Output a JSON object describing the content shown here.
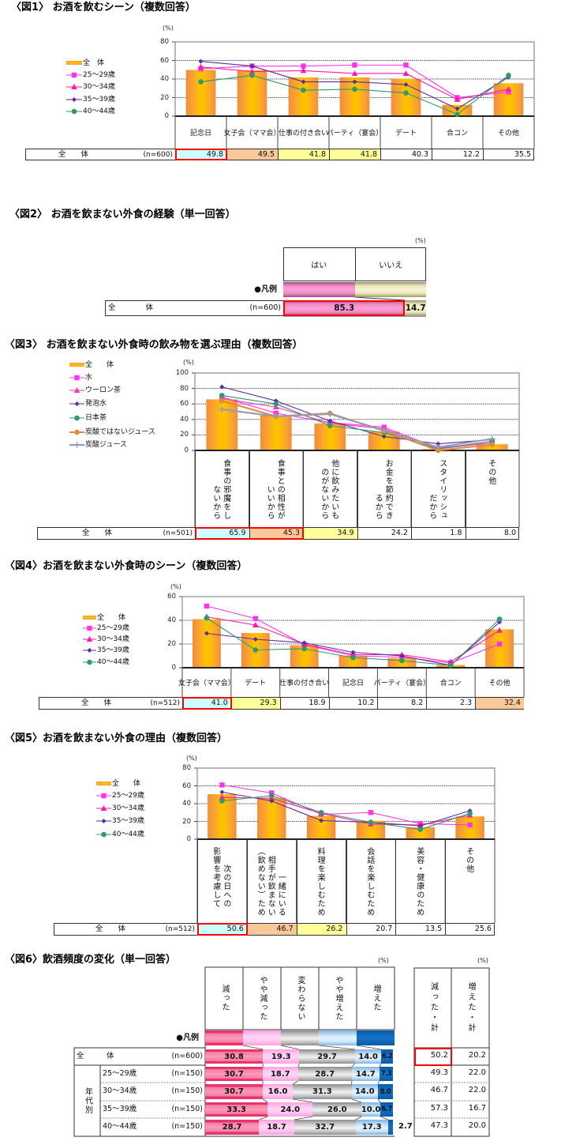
{
  "chart_data": [
    {
      "id": "fig1",
      "type": "bar_line",
      "title": "〈図1〉 お酒を飲むシーン（複数回答）",
      "unit_label": "(%)",
      "ylabel": "(%)",
      "xlabel": "",
      "ylim": [
        0,
        80
      ],
      "yticks": [
        "0",
        "20",
        "40",
        "60",
        "80"
      ],
      "grid": true,
      "legend_position": "left",
      "categories": [
        "記念日",
        "女子会（ママ会）",
        "仕事の付き合い",
        "パーティ（宴会）",
        "デート",
        "合コン",
        "その他"
      ],
      "series": [
        {
          "name": "全　体",
          "type": "bar",
          "values": [
            49.8,
            49.5,
            41.8,
            41.8,
            40.3,
            12.2,
            35.5
          ]
        },
        {
          "name": "25～29歳",
          "type": "line",
          "marker": "square",
          "color": "#ff33ee",
          "values": [
            51,
            54,
            54,
            55,
            55,
            20,
            26
          ]
        },
        {
          "name": "30～34歳",
          "type": "line",
          "marker": "triangle",
          "color": "#ff1aaa",
          "values": [
            53,
            48,
            49,
            46,
            46,
            18,
            29
          ]
        },
        {
          "name": "35～39歳",
          "type": "line",
          "marker": "diamond",
          "color": "#5b2ca0",
          "values": [
            59,
            54,
            37,
            37,
            34,
            8,
            42
          ]
        },
        {
          "name": "40～44歳",
          "type": "line",
          "marker": "circle",
          "color": "#2f9a6e",
          "values": [
            37,
            44,
            28,
            29,
            25,
            2,
            44
          ]
        }
      ],
      "table": {
        "row_label": "全　　体",
        "n_label": "(n=600)",
        "values": [
          "49.8",
          "49.5",
          "41.8",
          "41.8",
          "40.3",
          "12.2",
          "35.5"
        ],
        "fills": [
          "cyan",
          "orange",
          "yellow",
          "yellow",
          "",
          "",
          ""
        ],
        "red_box": [
          0,
          0
        ]
      }
    },
    {
      "id": "fig2",
      "type": "stacked_bar",
      "title": "〈図2〉 お酒を飲まない外食の経験（単一回答）",
      "unit_label": "(%)",
      "legend_label": "●凡例",
      "categories": [
        "はい",
        "いいえ"
      ],
      "colors": [
        "#f08cc6",
        "#ede7bd"
      ],
      "rows": [
        {
          "label": "全　　　　体",
          "n": "(n=600)",
          "values": [
            85.3,
            14.7
          ],
          "value_labels": [
            "85.3",
            "14.7"
          ]
        }
      ]
    },
    {
      "id": "fig3",
      "type": "bar_line",
      "title": "〈図3〉 お酒を飲まない外食時の飲み物を選ぶ理由（複数回答）",
      "unit_label": "(%)",
      "ylabel": "(%)",
      "xlabel": "",
      "ylim": [
        0,
        100
      ],
      "yticks": [
        "0",
        "20",
        "40",
        "60",
        "80",
        "100"
      ],
      "grid": true,
      "legend_position": "left",
      "categories": [
        "食事の邪魔をし\nないから",
        "食事との相性が\nいいから",
        "他に飲みたいも\nのがないから",
        "お金を節約でき\nるから",
        "スタイリッシュ\nだから",
        "その他"
      ],
      "series": [
        {
          "name": "全　　体",
          "type": "bar",
          "values": [
            65.9,
            45.3,
            34.9,
            24.2,
            1.8,
            8.0
          ]
        },
        {
          "name": "水",
          "type": "line",
          "marker": "square",
          "color": "#ff33ee",
          "values": [
            69,
            48,
            36,
            30,
            3,
            10
          ]
        },
        {
          "name": "ウーロン茶",
          "type": "line",
          "marker": "triangle",
          "color": "#ff33bb",
          "values": [
            67,
            56,
            35,
            28,
            2,
            10
          ]
        },
        {
          "name": "発泡水",
          "type": "line",
          "marker": "diamond",
          "color": "#5b2ca0",
          "values": [
            82,
            64,
            38,
            18,
            8.5,
            14
          ]
        },
        {
          "name": "日本茶",
          "type": "line",
          "marker": "circle",
          "color": "#2f9a72",
          "values": [
            71,
            60,
            32,
            23,
            2,
            12
          ]
        },
        {
          "name": "炭酸ではないジュース",
          "type": "line",
          "marker": "circle",
          "color": "#e08a3c",
          "width": 2,
          "values": [
            64,
            44,
            48,
            25,
            0,
            7.5
          ]
        },
        {
          "name": "炭酸ジュース",
          "type": "line",
          "marker": "plus",
          "color": "#9a9ab5",
          "width": 2.2,
          "values": [
            53,
            44,
            47,
            26,
            4,
            15
          ]
        }
      ],
      "table": {
        "row_label": "全　　体",
        "n_label": "(n=501)",
        "values": [
          "65.9",
          "45.3",
          "34.9",
          "24.2",
          "1.8",
          "8.0"
        ],
        "fills": [
          "cyan",
          "orange",
          "yellow",
          "",
          "",
          ""
        ],
        "red_box": [
          0,
          1
        ]
      }
    },
    {
      "id": "fig4",
      "type": "bar_line",
      "title": "〈図4〉お酒を飲まない外食時のシーン（複数回答）",
      "unit_label": "(%)",
      "ylabel": "(%)",
      "xlabel": "",
      "ylim": [
        0,
        60
      ],
      "yticks": [
        "0",
        "20",
        "40",
        "60"
      ],
      "grid": true,
      "legend_position": "left",
      "categories": [
        "女子会（ママ会）",
        "デート",
        "仕事の付き合い",
        "記念日",
        "パーティ（宴会）",
        "合コン",
        "その他"
      ],
      "series": [
        {
          "name": "全　　体",
          "type": "bar",
          "values": [
            41.0,
            29.3,
            18.9,
            10.2,
            8.2,
            2.3,
            32.4
          ]
        },
        {
          "name": "25～29歳",
          "type": "line",
          "marker": "square",
          "color": "#ff33ee",
          "values": [
            52,
            41.5,
            19.5,
            10,
            9,
            4,
            20
          ]
        },
        {
          "name": "30～34歳",
          "type": "line",
          "marker": "triangle",
          "color": "#ff1aaa",
          "values": [
            43,
            36,
            20,
            11,
            11,
            5,
            31.5
          ]
        },
        {
          "name": "35～39歳",
          "type": "line",
          "marker": "diamond",
          "color": "#5b2ca0",
          "values": [
            29,
            24,
            21,
            13,
            10,
            2,
            38.5
          ]
        },
        {
          "name": "40～44歳",
          "type": "line",
          "marker": "circle",
          "color": "#2f9a6e",
          "values": [
            42,
            15,
            16,
            8.5,
            6,
            2,
            41
          ]
        }
      ],
      "table": {
        "row_label": "全　　体",
        "n_label": "(n=512)",
        "values": [
          "41.0",
          "29.3",
          "18.9",
          "10.2",
          "8.2",
          "2.3",
          "32.4"
        ],
        "fills": [
          "cyan",
          "yellow",
          "",
          "",
          "",
          "",
          "orange"
        ],
        "red_box": [
          0,
          0
        ]
      }
    },
    {
      "id": "fig5",
      "type": "bar_line",
      "title": "〈図5〉お酒を飲まない外食の理由（複数回答）",
      "unit_label": "(%)",
      "ylabel": "(%)",
      "xlabel": "",
      "ylim": [
        0,
        80
      ],
      "yticks": [
        "0",
        "20",
        "40",
        "60",
        "80"
      ],
      "grid": true,
      "legend_position": "left",
      "categories": [
        "次の日への\n影響を考慮して",
        "一緒にいる\n相手が飲まない\n（飲めない）ため",
        "料理を楽しむため",
        "会話を楽しむため",
        "美容・健康のため",
        "その他"
      ],
      "series": [
        {
          "name": "全　　体",
          "type": "bar",
          "values": [
            50.6,
            46.7,
            26.2,
            20.7,
            13.5,
            25.6
          ]
        },
        {
          "name": "25～29歳",
          "type": "line",
          "marker": "square",
          "color": "#ff33ee",
          "values": [
            61,
            52,
            28,
            30,
            17.5,
            16
          ]
        },
        {
          "name": "30～34歳",
          "type": "line",
          "marker": "triangle",
          "color": "#ff1aaa",
          "values": [
            47,
            46,
            29,
            17,
            16,
            27
          ]
        },
        {
          "name": "35～39歳",
          "type": "line",
          "marker": "diamond",
          "color": "#5b2ca0",
          "values": [
            53,
            43,
            21,
            19,
            15,
            32
          ]
        },
        {
          "name": "40～44歳",
          "type": "line",
          "marker": "circle",
          "color": "#2f9a6e",
          "values": [
            43,
            49,
            30,
            19,
            11,
            29
          ]
        }
      ],
      "table": {
        "row_label": "全　　体",
        "n_label": "(n=512)",
        "values": [
          "50.6",
          "46.7",
          "26.2",
          "20.7",
          "13.5",
          "25.6"
        ],
        "fills": [
          "cyan",
          "orange",
          "yellow",
          "",
          "",
          ""
        ],
        "red_box": [
          0,
          0
        ]
      }
    },
    {
      "id": "fig6",
      "type": "stacked_bar",
      "title": "〈図6〉飲酒頻度の変化（単一回答）",
      "unit_label": "(%)",
      "summary_unit_label": "(%)",
      "legend_label": "●凡例",
      "group_label": "年代別",
      "categories": [
        "減った",
        "やや減った",
        "変わらない",
        "やや増えた",
        "増えた"
      ],
      "colors": [
        "#e8346c",
        "#ffc9f1",
        "#c0c0c0",
        "#a8d0ee",
        "#1070c0"
      ],
      "summary_columns": [
        "減った・計",
        "増えた・計"
      ],
      "rows": [
        {
          "label": "全　　　体",
          "n": "(n=600)",
          "values": [
            30.8,
            19.3,
            29.7,
            14.0,
            6.2
          ],
          "value_labels": [
            "30.8",
            "19.3",
            "29.7",
            "14.0",
            "6.2"
          ],
          "totals": [
            "50.2",
            "20.2"
          ]
        },
        {
          "label": "25～29歳",
          "n": "(n=150)",
          "values": [
            30.7,
            18.7,
            28.7,
            14.7,
            7.3
          ],
          "value_labels": [
            "30.7",
            "18.7",
            "28.7",
            "14.7",
            "7.3"
          ],
          "totals": [
            "49.3",
            "22.0"
          ]
        },
        {
          "label": "30～34歳",
          "n": "(n=150)",
          "values": [
            30.7,
            16.0,
            31.3,
            14.0,
            8.0
          ],
          "value_labels": [
            "30.7",
            "16.0",
            "31.3",
            "14.0",
            "8.0"
          ],
          "totals": [
            "46.7",
            "22.0"
          ]
        },
        {
          "label": "35～39歳",
          "n": "(n=150)",
          "values": [
            33.3,
            24.0,
            26.0,
            10.0,
            6.7
          ],
          "value_labels": [
            "33.3",
            "24.0",
            "26.0",
            "10.0",
            "6.7"
          ],
          "totals": [
            "57.3",
            "16.7"
          ]
        },
        {
          "label": "40～44歳",
          "n": "(n=150)",
          "values": [
            28.7,
            18.7,
            32.7,
            17.3,
            2.7
          ],
          "value_labels": [
            "28.7",
            "18.7",
            "32.7",
            "17.3",
            "2.7"
          ],
          "totals": [
            "47.3",
            "20.0"
          ]
        }
      ]
    }
  ],
  "highlight_colors": {
    "cyan": "#ccffff",
    "orange": "#fbc89a",
    "yellow": "#ffff99",
    "red_box": "#ff0000"
  },
  "bar_color": "#f7a531"
}
